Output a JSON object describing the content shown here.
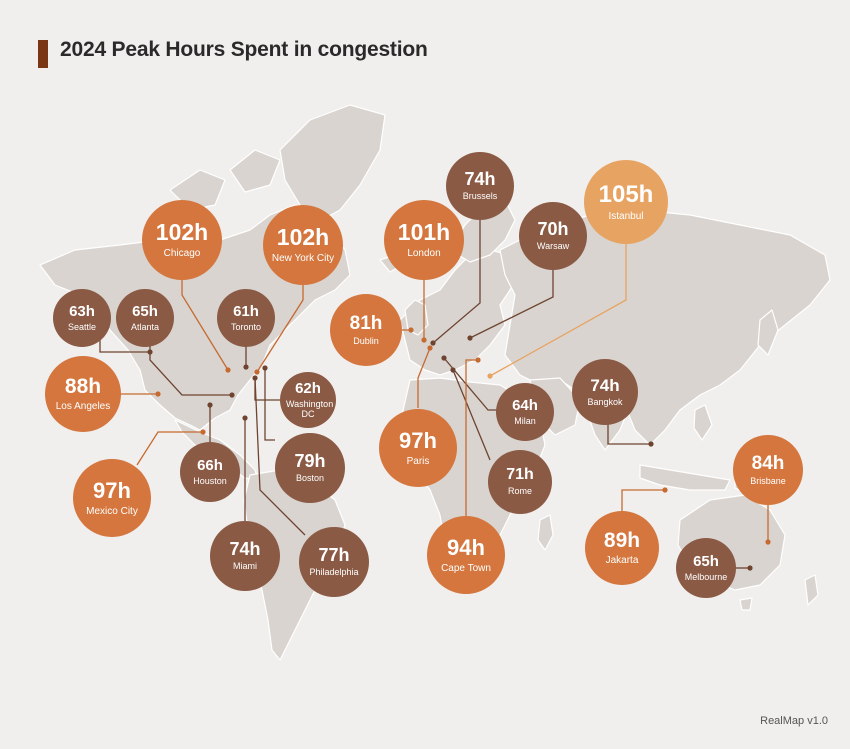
{
  "title": "2024 Peak Hours Spent in congestion",
  "footer": "RealMap v1.0",
  "colors": {
    "background": "#f1efed",
    "land": "#d9d4cf",
    "title_bar": "#7a3514",
    "brown": "#8a5a45",
    "orange": "#d4763d",
    "light_orange": "#e7a361"
  },
  "cities": [
    {
      "id": "chicago",
      "name": "Chicago",
      "value": 102,
      "label": "102h",
      "color": "orange"
    },
    {
      "id": "new-york-city",
      "name": "New York City",
      "value": 102,
      "label": "102h",
      "color": "orange"
    },
    {
      "id": "seattle",
      "name": "Seattle",
      "value": 63,
      "label": "63h",
      "color": "brown"
    },
    {
      "id": "atlanta",
      "name": "Atlanta",
      "value": 65,
      "label": "65h",
      "color": "brown"
    },
    {
      "id": "toronto",
      "name": "Toronto",
      "value": 61,
      "label": "61h",
      "color": "brown"
    },
    {
      "id": "los-angeles",
      "name": "Los Angeles",
      "value": 88,
      "label": "88h",
      "color": "orange"
    },
    {
      "id": "washington-dc",
      "name": "Washington DC",
      "value": 62,
      "label": "62h",
      "color": "brown"
    },
    {
      "id": "houston",
      "name": "Houston",
      "value": 66,
      "label": "66h",
      "color": "brown"
    },
    {
      "id": "boston",
      "name": "Boston",
      "value": 79,
      "label": "79h",
      "color": "brown"
    },
    {
      "id": "mexico-city",
      "name": "Mexico City",
      "value": 97,
      "label": "97h",
      "color": "orange"
    },
    {
      "id": "miami",
      "name": "Miami",
      "value": 74,
      "label": "74h",
      "color": "brown"
    },
    {
      "id": "philadelphia",
      "name": "Philadelphia",
      "value": 77,
      "label": "77h",
      "color": "brown"
    },
    {
      "id": "london",
      "name": "London",
      "value": 101,
      "label": "101h",
      "color": "orange"
    },
    {
      "id": "brussels",
      "name": "Brussels",
      "value": 74,
      "label": "74h",
      "color": "brown"
    },
    {
      "id": "warsaw",
      "name": "Warsaw",
      "value": 70,
      "label": "70h",
      "color": "brown"
    },
    {
      "id": "istanbul",
      "name": "Istanbul",
      "value": 105,
      "label": "105h",
      "color": "light_orange"
    },
    {
      "id": "dublin",
      "name": "Dublin",
      "value": 81,
      "label": "81h",
      "color": "orange"
    },
    {
      "id": "paris",
      "name": "Paris",
      "value": 97,
      "label": "97h",
      "color": "orange"
    },
    {
      "id": "milan",
      "name": "Milan",
      "value": 64,
      "label": "64h",
      "color": "brown"
    },
    {
      "id": "rome",
      "name": "Rome",
      "value": 71,
      "label": "71h",
      "color": "brown"
    },
    {
      "id": "cape-town",
      "name": "Cape Town",
      "value": 94,
      "label": "94h",
      "color": "orange"
    },
    {
      "id": "bangkok",
      "name": "Bangkok",
      "value": 74,
      "label": "74h",
      "color": "brown"
    },
    {
      "id": "brisbane",
      "name": "Brisbane",
      "value": 84,
      "label": "84h",
      "color": "orange"
    },
    {
      "id": "jakarta",
      "name": "Jakarta",
      "value": 89,
      "label": "89h",
      "color": "orange"
    },
    {
      "id": "melbourne",
      "name": "Melbourne",
      "value": 65,
      "label": "65h",
      "color": "brown"
    }
  ]
}
